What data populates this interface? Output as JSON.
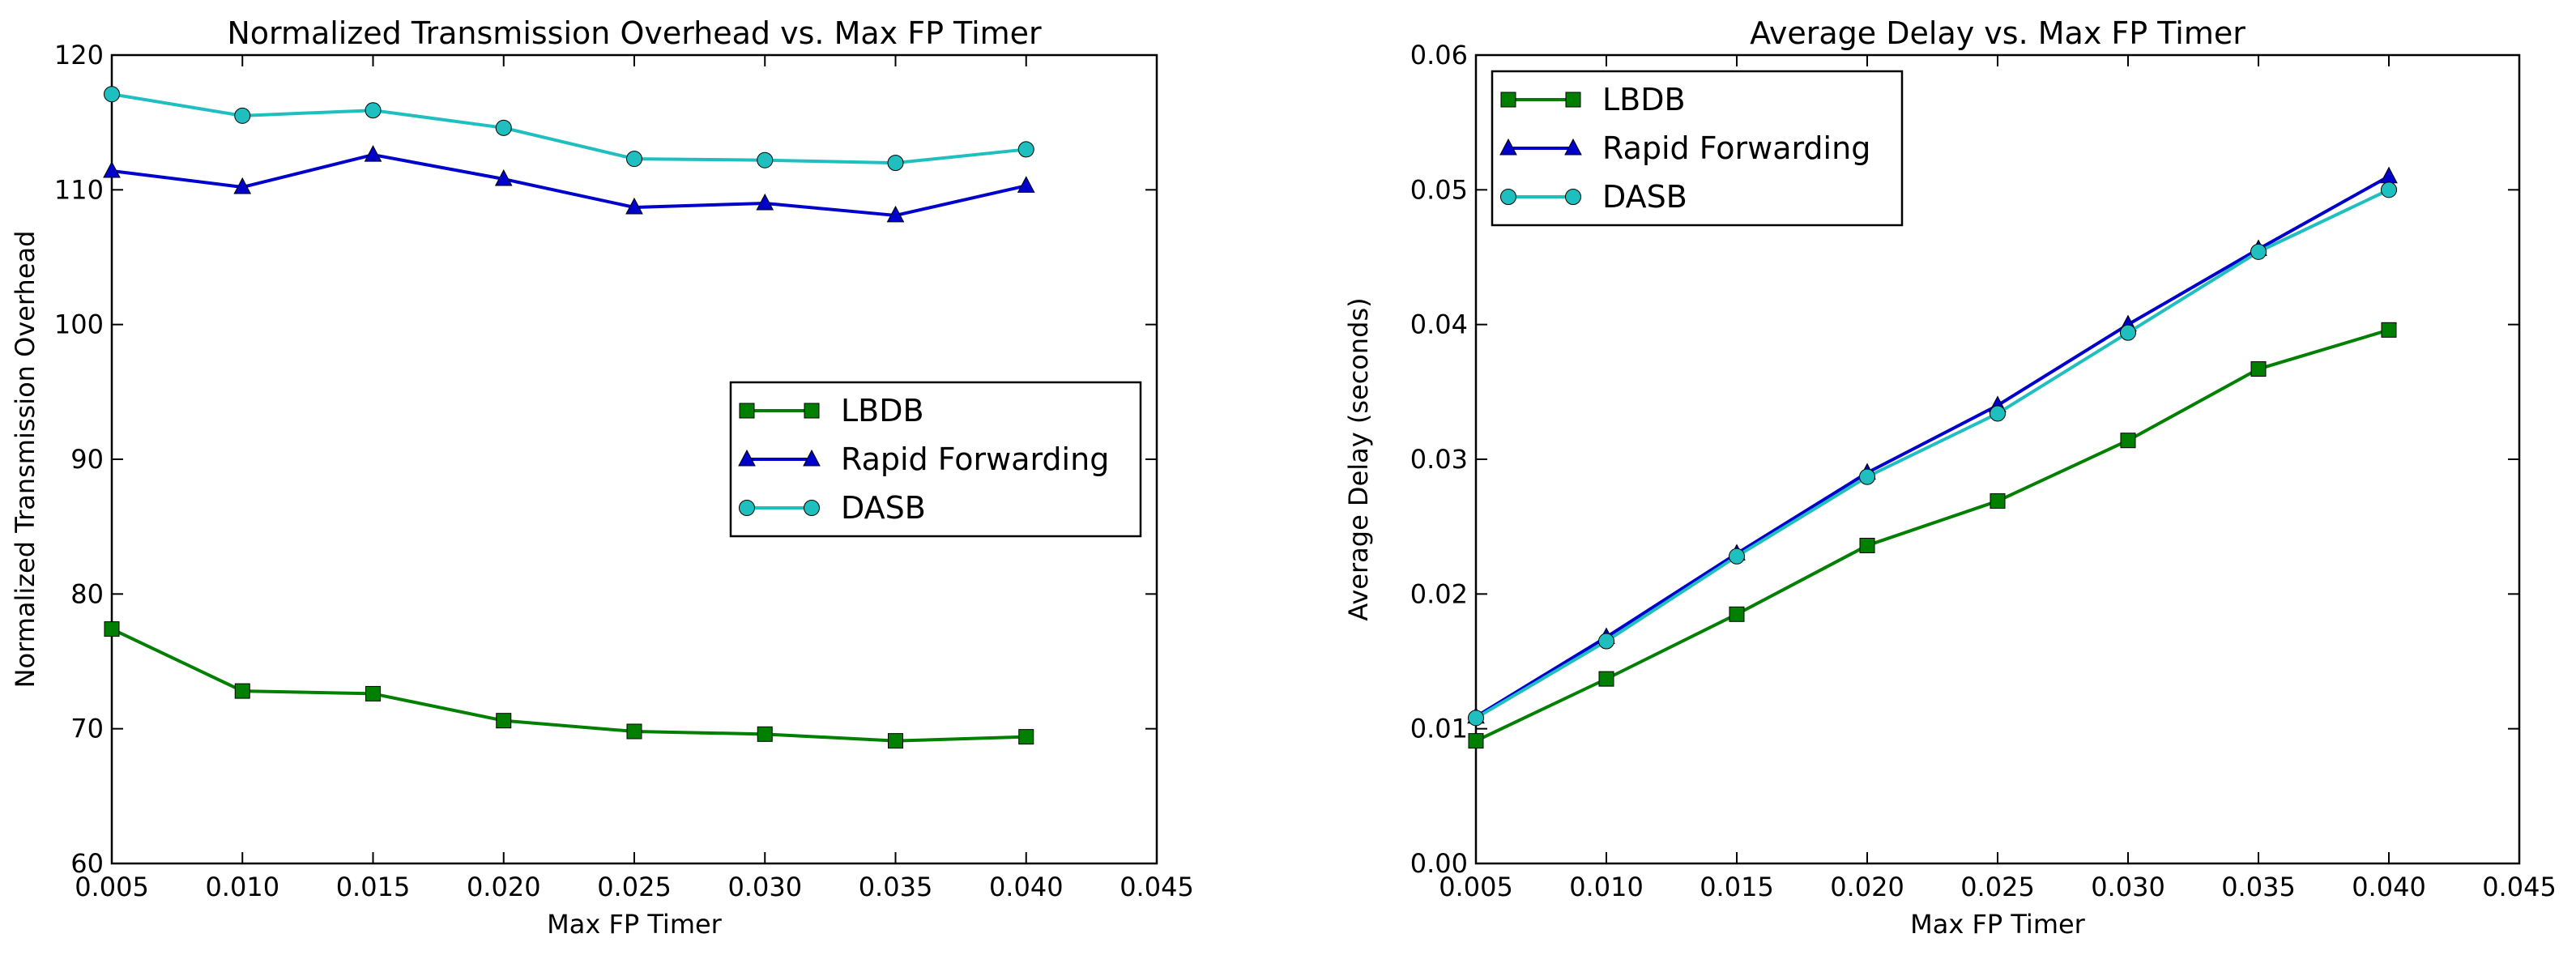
{
  "chart_data": [
    {
      "type": "line",
      "title": "Normalized Transmission Overhead vs. Max FP Timer",
      "xlabel": "Max FP Timer",
      "ylabel": "Normalized Transmission Overhead",
      "xlim": [
        0.005,
        0.045
      ],
      "ylim": [
        60,
        120
      ],
      "x_ticks": [
        0.005,
        0.01,
        0.015,
        0.02,
        0.025,
        0.03,
        0.035,
        0.04,
        0.045
      ],
      "x_tick_labels": [
        "0.005",
        "0.010",
        "0.015",
        "0.020",
        "0.025",
        "0.030",
        "0.035",
        "0.040",
        "0.045"
      ],
      "y_ticks": [
        60,
        70,
        80,
        90,
        100,
        110,
        120
      ],
      "y_tick_labels": [
        "60",
        "70",
        "80",
        "90",
        "100",
        "110",
        "120"
      ],
      "grid": false,
      "legend_position": "center-right",
      "x": [
        0.005,
        0.01,
        0.015,
        0.02,
        0.025,
        0.03,
        0.035,
        0.04
      ],
      "series": [
        {
          "name": "LBDB",
          "color": "#007f00",
          "marker": "square",
          "values": [
            77.4,
            72.8,
            72.6,
            70.6,
            69.8,
            69.6,
            69.1,
            69.4
          ]
        },
        {
          "name": "Rapid Forwarding",
          "color": "#0000cc",
          "marker": "triangle",
          "values": [
            111.4,
            110.2,
            112.6,
            110.8,
            108.7,
            109.0,
            108.1,
            110.3
          ]
        },
        {
          "name": "DASB",
          "color": "#1fbfbf",
          "marker": "circle",
          "values": [
            117.1,
            115.5,
            115.9,
            114.6,
            112.3,
            112.2,
            112.0,
            113.0
          ]
        }
      ]
    },
    {
      "type": "line",
      "title": "Average Delay vs. Max FP Timer",
      "xlabel": "Max FP Timer",
      "ylabel": "Average Delay (seconds)",
      "xlim": [
        0.005,
        0.045
      ],
      "ylim": [
        0.0,
        0.06
      ],
      "x_ticks": [
        0.005,
        0.01,
        0.015,
        0.02,
        0.025,
        0.03,
        0.035,
        0.04,
        0.045
      ],
      "x_tick_labels": [
        "0.005",
        "0.010",
        "0.015",
        "0.020",
        "0.025",
        "0.030",
        "0.035",
        "0.040",
        "0.045"
      ],
      "y_ticks": [
        0.0,
        0.01,
        0.02,
        0.03,
        0.04,
        0.05,
        0.06
      ],
      "y_tick_labels": [
        "0.00",
        "0.01",
        "0.02",
        "0.03",
        "0.04",
        "0.05",
        "0.06"
      ],
      "grid": false,
      "legend_position": "top-left",
      "x": [
        0.005,
        0.01,
        0.015,
        0.02,
        0.025,
        0.03,
        0.035,
        0.04
      ],
      "series": [
        {
          "name": "LBDB",
          "color": "#007f00",
          "marker": "square",
          "values": [
            0.0091,
            0.0137,
            0.0185,
            0.0236,
            0.0269,
            0.0314,
            0.0367,
            0.0396
          ]
        },
        {
          "name": "Rapid Forwarding",
          "color": "#0000cc",
          "marker": "triangle",
          "values": [
            0.0109,
            0.0168,
            0.023,
            0.029,
            0.034,
            0.04,
            0.0456,
            0.051
          ]
        },
        {
          "name": "DASB",
          "color": "#1fbfbf",
          "marker": "circle",
          "values": [
            0.0108,
            0.0165,
            0.0228,
            0.0287,
            0.0334,
            0.0394,
            0.0454,
            0.05
          ]
        }
      ]
    }
  ]
}
